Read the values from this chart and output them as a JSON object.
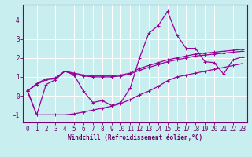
{
  "xlabel": "Windchill (Refroidissement éolien,°C)",
  "bg_color": "#c8eef0",
  "grid_color": "#b0c8d0",
  "line_color": "#990099",
  "x_data": [
    0,
    1,
    2,
    3,
    4,
    5,
    6,
    7,
    8,
    9,
    10,
    11,
    12,
    13,
    14,
    15,
    16,
    17,
    18,
    19,
    20,
    21,
    22,
    23
  ],
  "y_zigzag": [
    0.3,
    -1.0,
    0.6,
    0.85,
    1.3,
    1.1,
    0.25,
    -0.35,
    -0.25,
    -0.5,
    -0.35,
    0.4,
    2.0,
    3.3,
    3.7,
    4.45,
    3.2,
    2.5,
    2.5,
    1.8,
    1.75,
    1.15,
    1.9,
    2.05
  ],
  "y_lower": [
    0.25,
    -1.0,
    -1.0,
    -1.0,
    -1.0,
    -0.95,
    -0.85,
    -0.75,
    -0.65,
    -0.55,
    -0.4,
    -0.2,
    0.05,
    0.25,
    0.5,
    0.8,
    1.0,
    1.1,
    1.2,
    1.3,
    1.4,
    1.5,
    1.6,
    1.7
  ],
  "y_upper1": [
    0.25,
    0.6,
    0.85,
    0.9,
    1.3,
    1.15,
    1.05,
    1.0,
    1.0,
    1.0,
    1.05,
    1.15,
    1.35,
    1.5,
    1.65,
    1.8,
    1.9,
    2.0,
    2.1,
    2.15,
    2.2,
    2.25,
    2.3,
    2.35
  ],
  "y_upper2": [
    0.25,
    0.65,
    0.9,
    0.95,
    1.3,
    1.2,
    1.1,
    1.05,
    1.05,
    1.05,
    1.1,
    1.2,
    1.45,
    1.6,
    1.75,
    1.9,
    2.0,
    2.1,
    2.2,
    2.25,
    2.3,
    2.35,
    2.4,
    2.45
  ],
  "ylim": [
    -1.4,
    4.8
  ],
  "xlim": [
    -0.5,
    23.5
  ],
  "yticks": [
    -1,
    0,
    1,
    2,
    3,
    4
  ],
  "xticks": [
    0,
    1,
    2,
    3,
    4,
    5,
    6,
    7,
    8,
    9,
    10,
    11,
    12,
    13,
    14,
    15,
    16,
    17,
    18,
    19,
    20,
    21,
    22,
    23
  ],
  "tick_fontsize": 5.5,
  "xlabel_fontsize": 5.5
}
